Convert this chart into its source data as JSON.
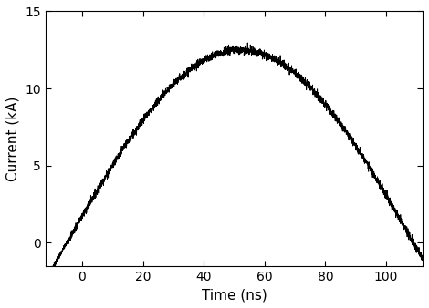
{
  "title": "",
  "xlabel": "Time (ns)",
  "ylabel": "Current (kA)",
  "xlim": [
    -12,
    112
  ],
  "ylim": [
    -1.5,
    15
  ],
  "xticks": [
    0,
    20,
    40,
    60,
    80,
    100
  ],
  "yticks": [
    0,
    5,
    10,
    15
  ],
  "line_color": "#000000",
  "background_color": "#ffffff",
  "noise_seed": 7,
  "t_start": -10,
  "t_end": 112,
  "n_points": 3000,
  "peak_current": 12.5,
  "peak_time": 52,
  "pulse_period": 124,
  "noise_amplitude": 0.13,
  "linewidth": 0.7,
  "font_size": 11
}
